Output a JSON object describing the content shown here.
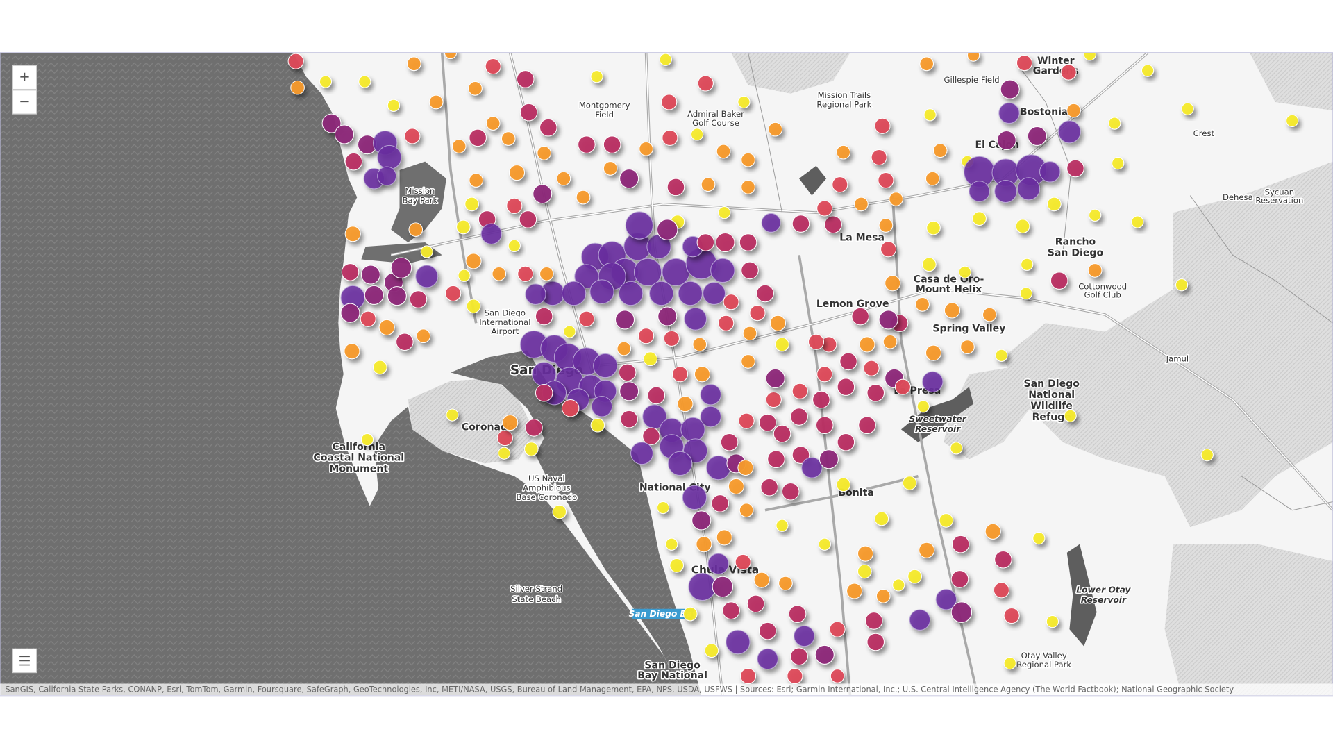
{
  "zoom": {
    "in": "+",
    "out": "−"
  },
  "labels": [
    [
      "Winter",
      "Gardens"
    ],
    [
      "Gillespie Field"
    ],
    [
      "Mission Trails",
      "Regional Park"
    ],
    [
      "Montgomery",
      "Field"
    ],
    [
      "Admiral Baker",
      "Golf Course"
    ],
    [
      "Bostonia"
    ],
    [
      "Crest"
    ],
    [
      "El Cajon"
    ],
    [
      "Mission",
      "Bay Park"
    ],
    [
      "Dehesa"
    ],
    [
      "Sycuan",
      "Reservation"
    ],
    [
      "La Mesa"
    ],
    [
      "Rancho",
      "San Diego"
    ],
    [
      "Casa de Oro-",
      "Mount Helix"
    ],
    [
      "Cottonwood",
      "Golf Club"
    ],
    [
      "Lemon Grove"
    ],
    [
      "San Diego",
      "International",
      "Airport"
    ],
    [
      "Spring Valley"
    ],
    [
      "Jamul"
    ],
    [
      "San Diego"
    ],
    [
      "San Diego",
      "National",
      "Wildlife",
      "Refuge"
    ],
    [
      "La Presa"
    ],
    [
      "Sweetwater",
      "Reservoir"
    ],
    [
      "Coronado"
    ],
    [
      "California",
      "Coastal National",
      "Monument"
    ],
    [
      "US Naval",
      "Amphibious",
      "Base Coronado"
    ],
    [
      "National City"
    ],
    [
      "Bonita"
    ],
    [
      "Chula Vista"
    ],
    [
      "Silver Strand",
      "State Beach"
    ],
    [
      "Lower Otay",
      "Reservoir"
    ],
    [
      "San Diego Bay"
    ],
    [
      "Otay Valley",
      "Regional Park"
    ],
    [
      "San Diego",
      "Bay National"
    ]
  ],
  "attribution": "SanGIS, California State Parks, CONANP, Esri, TomTom, Garmin, Foursquare, SafeGraph, GeoTechnologies, Inc, METI/NASA, USGS, Bureau of Land Management, EPA, NPS, USDA, USFWS | Sources: Esri; Garmin International, Inc.; U.S. Central Intelligence Agency (The World Factbook); National Geographic Society"
}
